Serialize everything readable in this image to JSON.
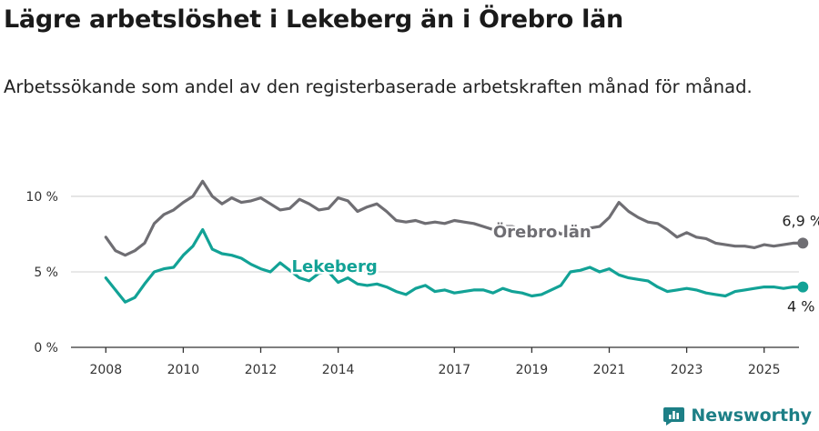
{
  "title": "Lägre arbetslöshet i Lekeberg än i Örebro län",
  "subtitle": "Arbetssökande som andel av den registerbaserade arbetskraften månad för månad.",
  "brand": "Newsworthy",
  "colors": {
    "lekeberg": "#12a296",
    "orebro": "#6f6e73",
    "grid": "#d9d9d9",
    "axis": "#333333"
  },
  "chart_data": {
    "type": "line",
    "x_start_year": 2008.0,
    "x_step_years": 0.25,
    "xlim": [
      2007.1,
      2025.9
    ],
    "ylim": [
      0,
      11.2
    ],
    "x_ticks": [
      2008,
      2010,
      2012,
      2014,
      2017,
      2019,
      2021,
      2023,
      2025
    ],
    "y_ticks": [
      {
        "value": 0,
        "label": "0 %"
      },
      {
        "value": 5,
        "label": "5 %"
      },
      {
        "value": 10,
        "label": "10 %"
      }
    ],
    "series": [
      {
        "name": "Örebro län",
        "color_key": "orebro",
        "end_label": "6,9 %",
        "values": [
          7.3,
          6.4,
          6.1,
          6.4,
          6.9,
          8.2,
          8.8,
          9.1,
          9.6,
          10.0,
          11.0,
          10.0,
          9.5,
          9.9,
          9.6,
          9.7,
          9.9,
          9.5,
          9.1,
          9.2,
          9.8,
          9.5,
          9.1,
          9.2,
          9.9,
          9.7,
          9.0,
          9.3,
          9.5,
          9.0,
          8.4,
          8.3,
          8.4,
          8.2,
          8.3,
          8.2,
          8.4,
          8.3,
          8.2,
          8.0,
          7.8,
          8.0,
          8.0,
          7.8,
          7.7,
          7.6,
          7.9,
          7.5,
          7.8,
          7.3,
          7.9,
          8.0,
          8.6,
          9.6,
          9.0,
          8.6,
          8.3,
          8.2,
          7.8,
          7.3,
          7.6,
          7.3,
          7.2,
          6.9,
          6.8,
          6.7,
          6.7,
          6.6,
          6.8,
          6.7,
          6.8,
          6.9,
          6.9
        ]
      },
      {
        "name": "Lekeberg",
        "color_key": "lekeberg",
        "end_label": "4 %",
        "values": [
          4.6,
          3.8,
          3.0,
          3.3,
          4.2,
          5.0,
          5.2,
          5.3,
          6.1,
          6.7,
          7.8,
          6.5,
          6.2,
          6.1,
          5.9,
          5.5,
          5.2,
          5.0,
          5.6,
          5.1,
          4.6,
          4.4,
          4.9,
          5.0,
          4.3,
          4.6,
          4.2,
          4.1,
          4.2,
          4.0,
          3.7,
          3.5,
          3.9,
          4.1,
          3.7,
          3.8,
          3.6,
          3.7,
          3.8,
          3.8,
          3.6,
          3.9,
          3.7,
          3.6,
          3.4,
          3.5,
          3.8,
          4.1,
          5.0,
          5.1,
          5.3,
          5.0,
          5.2,
          4.8,
          4.6,
          4.5,
          4.4,
          4.0,
          3.7,
          3.8,
          3.9,
          3.8,
          3.6,
          3.5,
          3.4,
          3.7,
          3.8,
          3.9,
          4.0,
          4.0,
          3.9,
          4.0,
          4.0
        ]
      }
    ],
    "inline_labels": [
      {
        "series": "Örebro län",
        "text": "Örebro län",
        "anchor": "start",
        "at": [
          2018.0,
          7.3
        ]
      },
      {
        "series": "Lekeberg",
        "text": "Lekeberg",
        "anchor": "start",
        "at": [
          2012.8,
          5.0
        ]
      }
    ]
  }
}
